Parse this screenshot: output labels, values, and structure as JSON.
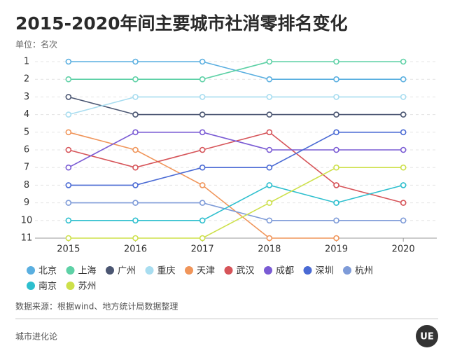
{
  "chart_data": {
    "type": "line",
    "title": "2015-2020年间主要城市社消零排名变化",
    "y_unit": "单位：名次",
    "source": "数据来源：根据wind、地方统计局数据整理",
    "footer": "城市进化论",
    "logo": "UE",
    "categories": [
      "2015",
      "2016",
      "2017",
      "2018",
      "2019",
      "2020"
    ],
    "ylim": [
      1,
      11
    ],
    "y_inverted": true,
    "yticks": [
      1,
      2,
      3,
      4,
      5,
      6,
      7,
      8,
      9,
      10,
      11
    ],
    "grid": true,
    "series": [
      {
        "name": "北京",
        "color": "#5aafe0",
        "values": [
          1,
          1,
          1,
          2,
          2,
          2
        ]
      },
      {
        "name": "上海",
        "color": "#5ed1a6",
        "values": [
          2,
          2,
          2,
          1,
          1,
          1
        ]
      },
      {
        "name": "广州",
        "color": "#4b5672",
        "values": [
          3,
          4,
          4,
          4,
          4,
          4
        ]
      },
      {
        "name": "重庆",
        "color": "#a8ddf0",
        "values": [
          4,
          3,
          3,
          3,
          3,
          3
        ]
      },
      {
        "name": "天津",
        "color": "#f0955a",
        "values": [
          5,
          6,
          8,
          11,
          11,
          null
        ]
      },
      {
        "name": "武汉",
        "color": "#d65459",
        "values": [
          6,
          7,
          6,
          5,
          8,
          9
        ]
      },
      {
        "name": "成都",
        "color": "#7a5bd4",
        "values": [
          7,
          5,
          5,
          6,
          6,
          6
        ]
      },
      {
        "name": "深圳",
        "color": "#4a6ad4",
        "values": [
          8,
          8,
          7,
          7,
          5,
          5
        ]
      },
      {
        "name": "杭州",
        "color": "#7e9bd8",
        "values": [
          9,
          9,
          9,
          10,
          10,
          10
        ]
      },
      {
        "name": "南京",
        "color": "#2dbfce",
        "values": [
          10,
          10,
          10,
          8,
          9,
          8
        ]
      },
      {
        "name": "苏州",
        "color": "#cde04a",
        "values": [
          11,
          11,
          11,
          9,
          7,
          7
        ]
      }
    ]
  }
}
